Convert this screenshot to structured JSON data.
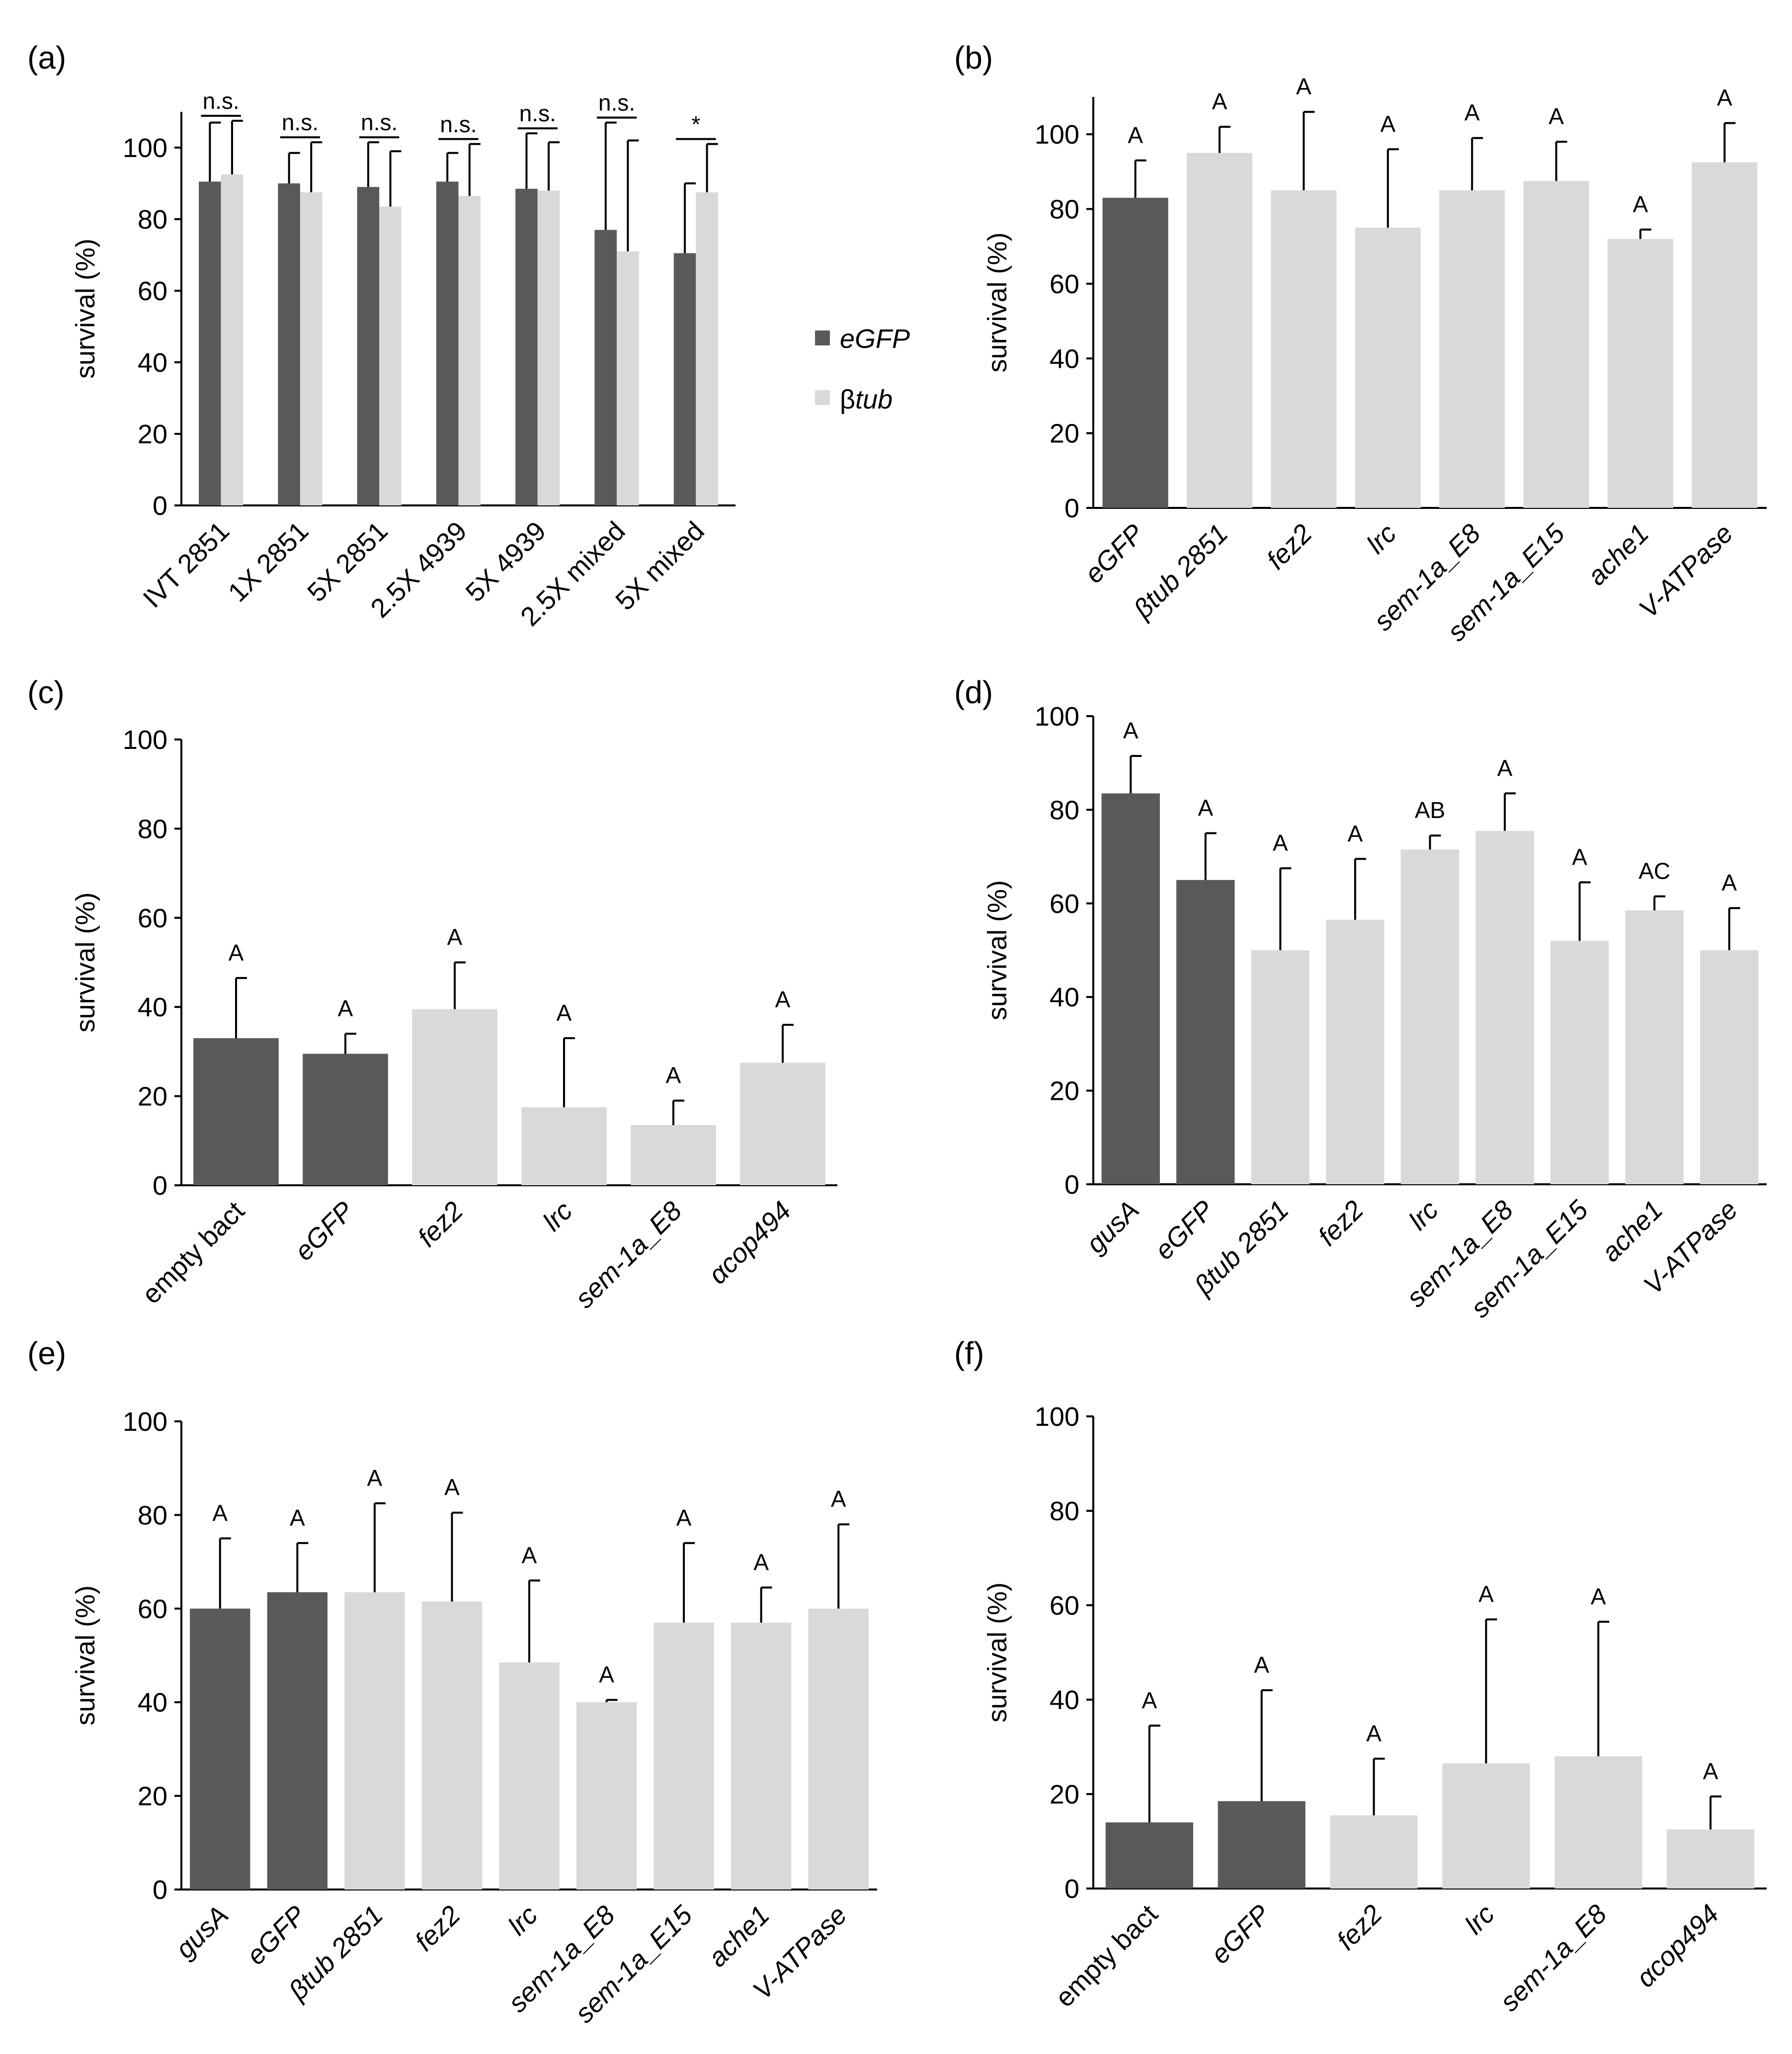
{
  "colors": {
    "dark": "#595959",
    "light": "#d9d9d9"
  },
  "legend": [
    {
      "label": "eGFP",
      "color": "dark",
      "italic": true
    },
    {
      "label": "β",
      "label_italic": "tub",
      "color": "light"
    }
  ],
  "chart_data": [
    {
      "id": "a",
      "panel_label": "(a)",
      "type": "bar",
      "ylabel": "survival (%)",
      "ylim": [
        0,
        110
      ],
      "yticks": [
        0,
        20,
        40,
        60,
        80,
        100
      ],
      "grouped": true,
      "categories": [
        "IVT 2851",
        "1X 2851",
        "5X 2851",
        "2.5X 4939",
        "5X 4939",
        "2.5X mixed",
        "5X mixed"
      ],
      "cat_italic": [
        false,
        false,
        false,
        false,
        false,
        false,
        false
      ],
      "series": [
        {
          "name": "eGFP",
          "color": "dark",
          "values": [
            90.5,
            90,
            89,
            90.5,
            88.5,
            77,
            70.5
          ],
          "errors": [
            16.5,
            8.5,
            12.5,
            8,
            15.5,
            30,
            19.5
          ]
        },
        {
          "name": "βtub",
          "color": "light",
          "values": [
            92.5,
            87.5,
            83.5,
            86.5,
            88,
            71,
            87.5
          ],
          "errors": [
            15,
            14,
            15.5,
            14.5,
            13.5,
            31,
            13.5
          ]
        }
      ],
      "significance": [
        "n.s.",
        "n.s.",
        "n.s.",
        "n.s.",
        "n.s.",
        "n.s.",
        "*"
      ]
    },
    {
      "id": "b",
      "panel_label": "(b)",
      "type": "bar",
      "ylabel": "survival (%)",
      "ylim": [
        0,
        110
      ],
      "yticks": [
        0,
        20,
        40,
        60,
        80,
        100
      ],
      "categories": [
        "eGFP",
        "βtub 2851",
        "fez2",
        "lrc",
        "sem-1a_E8",
        "sem-1a_E15",
        "ache1",
        "V-ATPase"
      ],
      "cat_italic": [
        true,
        true,
        true,
        true,
        true,
        true,
        true,
        true
      ],
      "values": [
        83,
        95,
        85,
        75,
        85,
        87.5,
        72,
        92.5
      ],
      "errors": [
        10,
        7,
        21,
        21,
        14,
        10.5,
        2.5,
        10.5
      ],
      "colors": [
        "dark",
        "light",
        "light",
        "light",
        "light",
        "light",
        "light",
        "light"
      ],
      "letters": [
        "A",
        "A",
        "A",
        "A",
        "A",
        "A",
        "A",
        "A"
      ]
    },
    {
      "id": "c",
      "panel_label": "(c)",
      "type": "bar",
      "ylabel": "survival (%)",
      "ylim": [
        0,
        100
      ],
      "yticks": [
        0,
        20,
        40,
        60,
        80,
        100
      ],
      "categories": [
        "empty bact",
        "eGFP",
        "fez2",
        "lrc",
        "sem-1a_E8",
        "αcop494"
      ],
      "cat_italic": [
        false,
        true,
        true,
        true,
        true,
        true
      ],
      "values": [
        33,
        29.5,
        39.5,
        17.5,
        13.5,
        27.5
      ],
      "errors": [
        13.5,
        4.5,
        10.5,
        15.5,
        5.5,
        8.5
      ],
      "colors": [
        "dark",
        "dark",
        "light",
        "light",
        "light",
        "light"
      ],
      "letters": [
        "A",
        "A",
        "A",
        "A",
        "A",
        "A"
      ]
    },
    {
      "id": "d",
      "panel_label": "(d)",
      "type": "bar",
      "ylabel": "survival (%)",
      "ylim": [
        0,
        100
      ],
      "yticks": [
        0,
        20,
        40,
        60,
        80,
        100
      ],
      "categories": [
        "gusA",
        "eGFP",
        "βtub 2851",
        "fez2",
        "lrc",
        "sem-1a_E8",
        "sem-1a_E15",
        "ache1",
        "V-ATPase"
      ],
      "cat_italic": [
        true,
        true,
        true,
        true,
        true,
        true,
        true,
        true,
        true
      ],
      "values": [
        83.5,
        65,
        50,
        56.5,
        71.5,
        75.5,
        52,
        58.5,
        50
      ],
      "errors": [
        8,
        10,
        17.5,
        13,
        3,
        8,
        12.5,
        3,
        9
      ],
      "colors": [
        "dark",
        "dark",
        "light",
        "light",
        "light",
        "light",
        "light",
        "light",
        "light"
      ],
      "letters": [
        "A",
        "A",
        "A",
        "A",
        "AB",
        "A",
        "A",
        "AC",
        "A"
      ]
    },
    {
      "id": "e",
      "panel_label": "(e)",
      "type": "bar",
      "ylabel": "survival (%)",
      "ylim": [
        0,
        100
      ],
      "yticks": [
        0,
        20,
        40,
        60,
        80,
        100
      ],
      "categories": [
        "gusA",
        "eGFP",
        "βtub 2851",
        "fez2",
        "lrc",
        "sem-1a_E8",
        "sem-1a_E15",
        "ache1",
        "V-ATPase"
      ],
      "cat_italic": [
        true,
        true,
        true,
        true,
        true,
        true,
        true,
        true,
        true
      ],
      "values": [
        60,
        63.5,
        63.5,
        61.5,
        48.5,
        40,
        57,
        57,
        60
      ],
      "errors": [
        15,
        10.5,
        19,
        19,
        17.5,
        0.5,
        17,
        7.5,
        18
      ],
      "colors": [
        "dark",
        "dark",
        "light",
        "light",
        "light",
        "light",
        "light",
        "light",
        "light"
      ],
      "letters": [
        "A",
        "A",
        "A",
        "A",
        "A",
        "A",
        "A",
        "A",
        "A"
      ]
    },
    {
      "id": "f",
      "panel_label": "(f)",
      "type": "bar",
      "ylabel": "survival (%)",
      "ylim": [
        0,
        100
      ],
      "yticks": [
        0,
        20,
        40,
        60,
        80,
        100
      ],
      "categories": [
        "empty bact",
        "eGFP",
        "fez2",
        "lrc",
        "sem-1a_E8",
        "αcop494"
      ],
      "cat_italic": [
        false,
        true,
        true,
        true,
        true,
        true
      ],
      "values": [
        14,
        18.5,
        15.5,
        26.5,
        28,
        12.5
      ],
      "errors": [
        20.5,
        23.5,
        12,
        30.5,
        28.5,
        7
      ],
      "colors": [
        "dark",
        "dark",
        "light",
        "light",
        "light",
        "light"
      ],
      "letters": [
        "A",
        "A",
        "A",
        "A",
        "A",
        "A"
      ]
    }
  ]
}
